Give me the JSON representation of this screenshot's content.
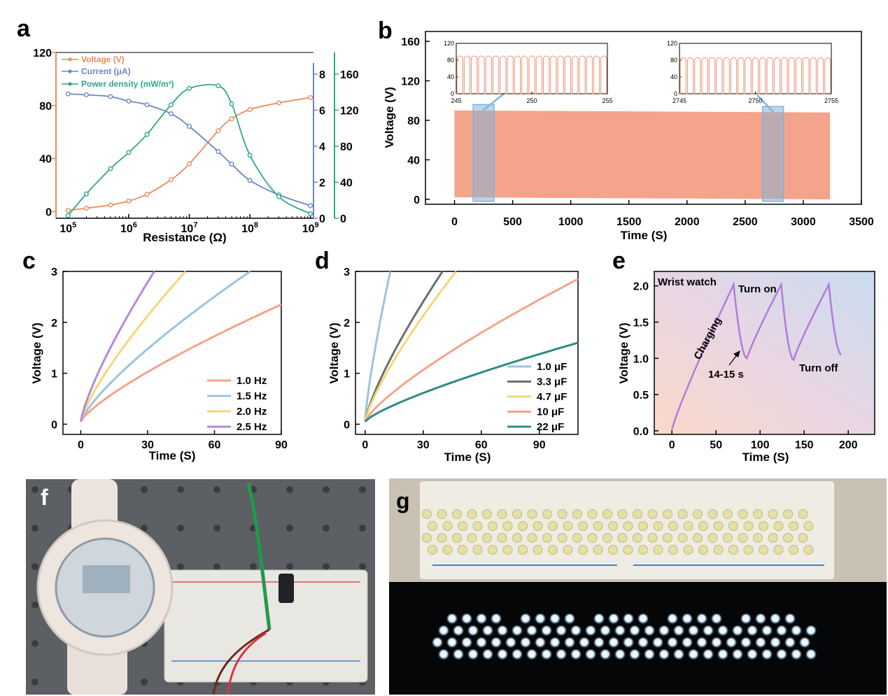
{
  "panel_labels": {
    "a": "a",
    "b": "b",
    "c": "c",
    "d": "d",
    "e": "e",
    "f": "f",
    "g": "g"
  },
  "colors": {
    "voltage": "#ee8a5c",
    "current": "#6b86c8",
    "power": "#2fa88a",
    "fill_b": "#f3a48a",
    "box_b": "#7ab6e0"
  },
  "chart_data": [
    {
      "id": "a",
      "type": "line",
      "xlabel": "Resistance (Ω)",
      "x_scale": "log",
      "x_ticks": [
        "10^5",
        "10^6",
        "10^7",
        "10^8",
        "10^9"
      ],
      "x": [
        100000,
        200000,
        500000,
        1000000,
        2000000,
        5000000,
        10000000,
        30000000,
        50000000,
        100000000,
        300000000,
        1000000000
      ],
      "y_ticks_left": [
        "0",
        "40",
        "80",
        "120"
      ],
      "y_ticks_right1": [
        "0",
        "2",
        "4",
        "6",
        "8"
      ],
      "y_ticks_right2": [
        "0",
        "40",
        "80",
        "120",
        "160"
      ],
      "series": [
        {
          "name": "Voltage (V)",
          "axis": "left",
          "ylim": [
            -5,
            120
          ],
          "color": "#ee8a5c",
          "values": [
            1,
            2.5,
            5,
            8,
            13,
            24,
            36,
            61,
            70,
            77,
            82,
            86
          ]
        },
        {
          "name": "Current (μA)",
          "axis": "right1",
          "ylim": [
            0,
            9.2
          ],
          "color": "#6b86c8",
          "values": [
            6.9,
            6.85,
            6.75,
            6.5,
            6.3,
            5.8,
            5.1,
            3.7,
            3.0,
            2.1,
            1.3,
            0.7
          ]
        },
        {
          "name": "Power density (mW/m²)",
          "axis": "right2",
          "ylim": [
            0,
            184
          ],
          "color": "#2fa88a",
          "values": [
            3,
            27,
            55,
            73,
            93,
            126,
            144,
            147,
            127,
            70,
            24,
            5
          ]
        }
      ]
    },
    {
      "id": "b",
      "type": "area",
      "xlabel": "Time (S)",
      "ylabel": "Voltage (V)",
      "xlim": [
        -250,
        3500
      ],
      "ylim": [
        -5,
        170
      ],
      "x_ticks": [
        "0",
        "500",
        "1000",
        "1500",
        "2000",
        "2500",
        "3000",
        "3500"
      ],
      "y_ticks": [
        "0",
        "40",
        "80",
        "120",
        "160"
      ],
      "band": {
        "x": [
          0,
          3230
        ],
        "ymin": [
          2,
          0
        ],
        "ymax": [
          90,
          88
        ]
      },
      "insets": [
        {
          "xlim": [
            245,
            255
          ],
          "ylim": [
            0,
            120
          ],
          "x_ticks": [
            "245",
            "250",
            "255"
          ],
          "y_ticks": [
            "0",
            "40",
            "80",
            "120"
          ],
          "peak": 90,
          "cycles": 21
        },
        {
          "xlim": [
            2745,
            2755
          ],
          "ylim": [
            0,
            120
          ],
          "x_ticks": [
            "2745",
            "2750",
            "2755"
          ],
          "y_ticks": [
            "0",
            "40",
            "80",
            "120"
          ],
          "peak": 86,
          "cycles": 21
        }
      ]
    },
    {
      "id": "c",
      "type": "line",
      "xlabel": "Time (S)",
      "ylabel": "Voltage (V)",
      "xlim": [
        -8,
        90
      ],
      "ylim": [
        -0.2,
        3
      ],
      "x_ticks": [
        "0",
        "30",
        "60",
        "90"
      ],
      "y_ticks": [
        "0",
        "1",
        "2",
        "3"
      ],
      "series": [
        {
          "name": "1.0 Hz",
          "color": "#f4a48a",
          "t_end": 90,
          "v_end": 2.35
        },
        {
          "name": "1.5 Hz",
          "color": "#9cc3e2",
          "t_end": 76,
          "v_end": 3.0
        },
        {
          "name": "2.0 Hz",
          "color": "#f5d67a",
          "t_end": 47,
          "v_end": 3.0
        },
        {
          "name": "2.5 Hz",
          "color": "#b58ad8",
          "t_end": 33,
          "v_end": 3.0
        }
      ]
    },
    {
      "id": "d",
      "type": "line",
      "xlabel": "Time (S)",
      "ylabel": "Voltage (V)",
      "xlim": [
        -5,
        110
      ],
      "ylim": [
        -0.2,
        3
      ],
      "x_ticks": [
        "0",
        "30",
        "60",
        "90"
      ],
      "y_ticks": [
        "0",
        "1",
        "2",
        "3"
      ],
      "series": [
        {
          "name": "1.0 μF",
          "color": "#9cc3e2",
          "t_end": 13,
          "v_end": 3.0
        },
        {
          "name": "3.3 μF",
          "color": "#6e6e6e",
          "t_end": 40,
          "v_end": 3.0
        },
        {
          "name": "4.7 μF",
          "color": "#f5d67a",
          "t_end": 47,
          "v_end": 3.0
        },
        {
          "name": "10 μF",
          "color": "#f4a48a",
          "t_end": 110,
          "v_end": 2.85
        },
        {
          "name": "22 μF",
          "color": "#2c8c82",
          "t_end": 110,
          "v_end": 1.6
        }
      ]
    },
    {
      "id": "e",
      "type": "line",
      "xlabel": "Time (S)",
      "ylabel": "Voltage (V)",
      "title": "Wrist watch",
      "xlim": [
        -20,
        230
      ],
      "ylim": [
        -0.05,
        2.2
      ],
      "x_ticks": [
        "0",
        "50",
        "100",
        "150",
        "200"
      ],
      "y_ticks": [
        "0.0",
        "0.5",
        "1.0",
        "1.5",
        "2.0"
      ],
      "x": [
        0,
        70,
        85,
        124,
        138,
        178,
        192
      ],
      "values": [
        0.02,
        2.02,
        1.0,
        2.02,
        0.98,
        2.02,
        1.05
      ],
      "color": "#b07cd8",
      "annotations": {
        "charging": "Charging",
        "turn_on": "Turn on",
        "turn_off": "Turn off",
        "interval": "14-15 s"
      }
    }
  ]
}
